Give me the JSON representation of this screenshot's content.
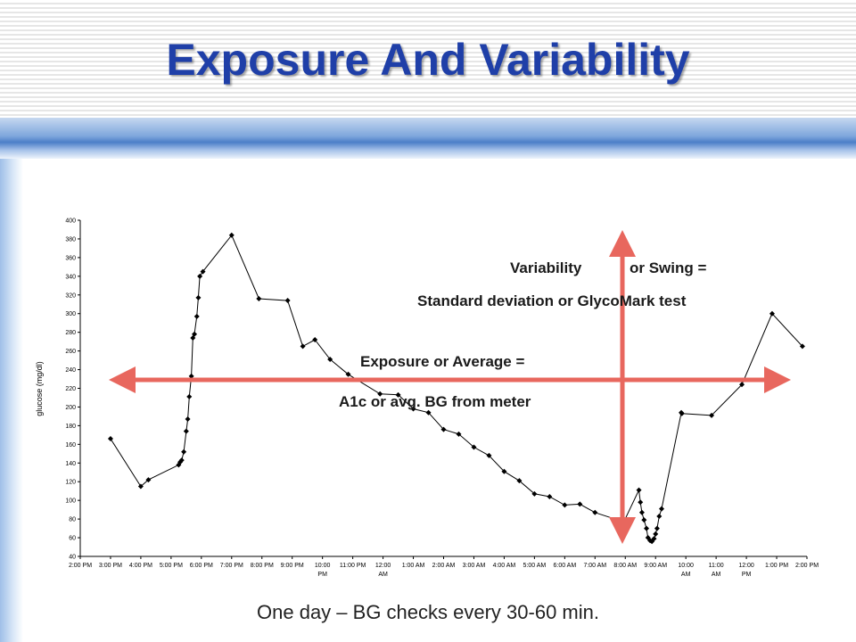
{
  "slide": {
    "title": "Exposure And Variability",
    "caption": "One day – BG checks every 30-60 min."
  },
  "colors": {
    "title": "#1f3fa8",
    "arrow": "#e8675e",
    "line": "#000000"
  },
  "chart_data": {
    "type": "line",
    "ylabel": "glucose (mg/dl)",
    "ylim": [
      40,
      400
    ],
    "yticks": [
      40,
      60,
      80,
      100,
      120,
      140,
      160,
      180,
      200,
      220,
      240,
      260,
      280,
      300,
      320,
      340,
      360,
      380,
      400
    ],
    "xlim": [
      14,
      38
    ],
    "xticks": [
      {
        "x": 14,
        "label": [
          "2:00 PM"
        ]
      },
      {
        "x": 15,
        "label": [
          "3:00 PM"
        ]
      },
      {
        "x": 16,
        "label": [
          "4:00 PM"
        ]
      },
      {
        "x": 17,
        "label": [
          "5:00 PM"
        ]
      },
      {
        "x": 18,
        "label": [
          "6:00 PM"
        ]
      },
      {
        "x": 19,
        "label": [
          "7:00 PM"
        ]
      },
      {
        "x": 20,
        "label": [
          "8:00 PM"
        ]
      },
      {
        "x": 21,
        "label": [
          "9:00 PM"
        ]
      },
      {
        "x": 22,
        "label": [
          "10:00",
          "PM"
        ]
      },
      {
        "x": 23,
        "label": [
          "11:00 PM"
        ]
      },
      {
        "x": 24,
        "label": [
          "12:00",
          "AM"
        ]
      },
      {
        "x": 25,
        "label": [
          "1:00 AM"
        ]
      },
      {
        "x": 26,
        "label": [
          "2:00 AM"
        ]
      },
      {
        "x": 27,
        "label": [
          "3:00 AM"
        ]
      },
      {
        "x": 28,
        "label": [
          "4:00 AM"
        ]
      },
      {
        "x": 29,
        "label": [
          "5:00 AM"
        ]
      },
      {
        "x": 30,
        "label": [
          "6:00 AM"
        ]
      },
      {
        "x": 31,
        "label": [
          "7:00 AM"
        ]
      },
      {
        "x": 32,
        "label": [
          "8:00 AM"
        ]
      },
      {
        "x": 33,
        "label": [
          "9:00 AM"
        ]
      },
      {
        "x": 34,
        "label": [
          "10:00",
          "AM"
        ]
      },
      {
        "x": 35,
        "label": [
          "11:00",
          "AM"
        ]
      },
      {
        "x": 36,
        "label": [
          "12:00",
          "PM"
        ]
      },
      {
        "x": 37,
        "label": [
          "1:00 PM"
        ]
      },
      {
        "x": 38,
        "label": [
          "2:00 PM"
        ]
      }
    ],
    "grid": false,
    "series": [
      {
        "points": [
          [
            15.0,
            166
          ],
          [
            16.0,
            115
          ],
          [
            16.25,
            122
          ],
          [
            17.25,
            138
          ],
          [
            17.3,
            141
          ],
          [
            17.35,
            143
          ],
          [
            17.42,
            152
          ],
          [
            17.5,
            174
          ],
          [
            17.55,
            187
          ],
          [
            17.6,
            211
          ],
          [
            17.67,
            233
          ],
          [
            17.72,
            274
          ],
          [
            17.77,
            278
          ],
          [
            17.85,
            297
          ],
          [
            17.9,
            317
          ],
          [
            17.95,
            340
          ],
          [
            18.05,
            345
          ],
          [
            19.0,
            384
          ],
          [
            19.9,
            316
          ],
          [
            20.85,
            314
          ],
          [
            21.35,
            265
          ],
          [
            21.75,
            272
          ],
          [
            22.25,
            251
          ],
          [
            22.85,
            235
          ],
          [
            23.9,
            214
          ],
          [
            24.5,
            213
          ],
          [
            25.0,
            198
          ],
          [
            25.5,
            194
          ],
          [
            26.0,
            176
          ],
          [
            26.5,
            171
          ],
          [
            27.0,
            157
          ],
          [
            27.5,
            148
          ],
          [
            28.0,
            131
          ],
          [
            28.5,
            121
          ],
          [
            29.0,
            107
          ],
          [
            29.5,
            104
          ],
          [
            30.0,
            95
          ],
          [
            30.5,
            96
          ],
          [
            31.0,
            87
          ],
          [
            31.95,
            77
          ],
          [
            32.45,
            111
          ],
          [
            32.5,
            98
          ],
          [
            32.55,
            87
          ],
          [
            32.62,
            79
          ],
          [
            32.7,
            70
          ],
          [
            32.75,
            60
          ],
          [
            32.82,
            57
          ],
          [
            32.88,
            56
          ],
          [
            32.95,
            59
          ],
          [
            33.0,
            64
          ],
          [
            33.05,
            70
          ],
          [
            33.12,
            83
          ],
          [
            33.2,
            91
          ],
          [
            33.85,
            194
          ],
          [
            33.87,
            193
          ],
          [
            34.85,
            191
          ],
          [
            35.85,
            224
          ],
          [
            36.85,
            300
          ],
          [
            37.85,
            265
          ]
        ]
      }
    ],
    "annotations": {
      "variability_1": "Variability",
      "variability_2": "or Swing =",
      "variability_3": "Standard deviation or GlycoMark test",
      "exposure_1": "Exposure or Average =",
      "exposure_2": "A1c or avg. BG from meter"
    }
  }
}
